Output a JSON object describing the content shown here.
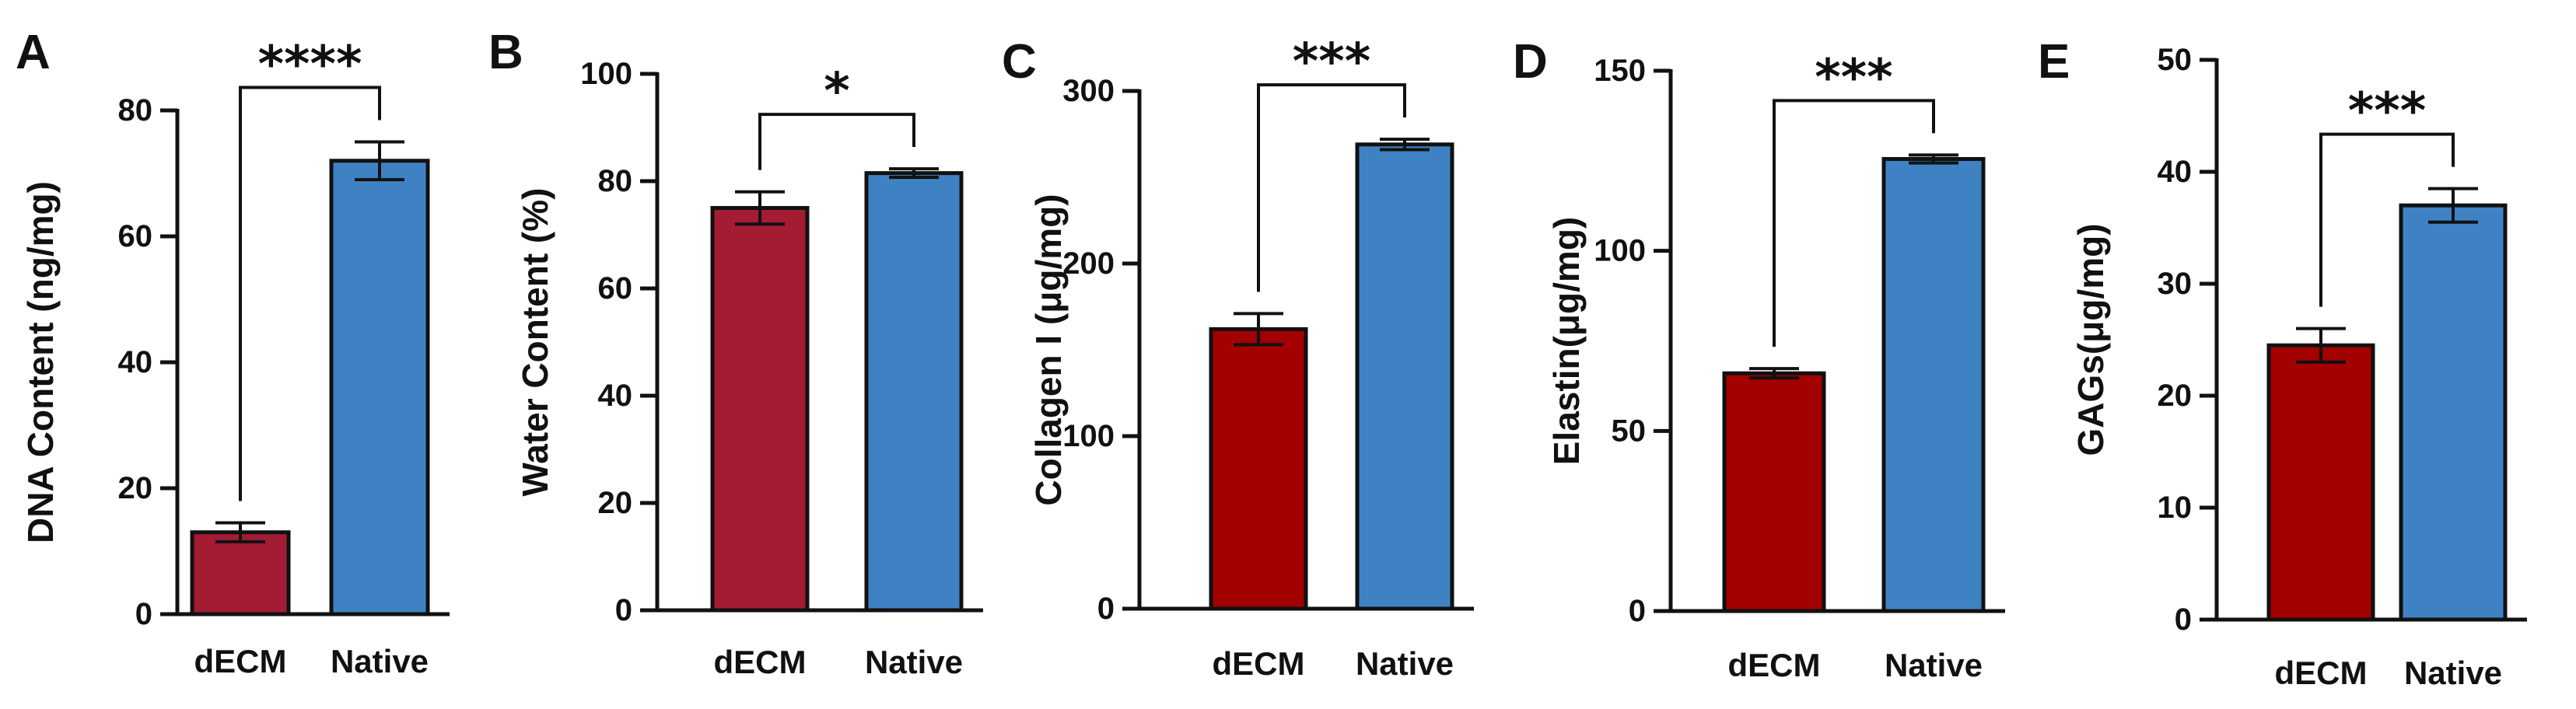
{
  "chart_data": [
    {
      "type": "bar",
      "panel": "A",
      "categories": [
        "dECM",
        "Native"
      ],
      "values": [
        13,
        72
      ],
      "errors": [
        1.5,
        3
      ],
      "ylabel": "DNA Content (ng/mg)",
      "ylim": [
        0,
        80
      ],
      "yticks": [
        0,
        20,
        40,
        60,
        80
      ],
      "significance": "****",
      "colors": [
        "#A31C34",
        "#3F82C4"
      ]
    },
    {
      "type": "bar",
      "panel": "B",
      "categories": [
        "dECM",
        "Native"
      ],
      "values": [
        75,
        81.5
      ],
      "errors": [
        3,
        0.8
      ],
      "ylabel": "Water Content (%)",
      "ylim": [
        0,
        100
      ],
      "yticks": [
        0,
        20,
        40,
        60,
        80,
        100
      ],
      "significance": "*",
      "colors": [
        "#A31C34",
        "#3F82C4"
      ]
    },
    {
      "type": "bar",
      "panel": "C",
      "categories": [
        "dECM",
        "Native"
      ],
      "values": [
        162,
        269
      ],
      "errors": [
        9,
        3
      ],
      "ylabel": "Collagen I (μg/mg)",
      "ylim": [
        0,
        300
      ],
      "yticks": [
        0,
        100,
        200,
        300
      ],
      "significance": "***",
      "colors": [
        "#A30000",
        "#3F82C4"
      ]
    },
    {
      "type": "bar",
      "panel": "D",
      "categories": [
        "dECM",
        "Native"
      ],
      "values": [
        66,
        125.5
      ],
      "errors": [
        1.3,
        1.1
      ],
      "ylabel": "Elastin(μg/mg)",
      "ylim": [
        0,
        150
      ],
      "yticks": [
        0,
        50,
        100,
        150
      ],
      "significance": "***",
      "colors": [
        "#A30000",
        "#3F82C4"
      ]
    },
    {
      "type": "bar",
      "panel": "E",
      "categories": [
        "dECM",
        "Native"
      ],
      "values": [
        24.5,
        37
      ],
      "errors": [
        1.5,
        1.5
      ],
      "ylabel": "GAGs(μg/mg)",
      "ylim": [
        0,
        50
      ],
      "yticks": [
        0,
        10,
        20,
        30,
        40,
        50
      ],
      "significance": "***",
      "colors": [
        "#A30000",
        "#3F82C4"
      ]
    }
  ]
}
